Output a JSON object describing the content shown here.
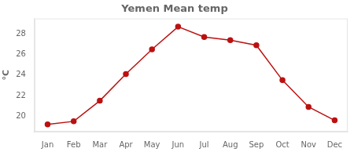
{
  "chart_data": {
    "type": "line",
    "title": "Yemen Mean temp",
    "categories": [
      "Jan",
      "Feb",
      "Mar",
      "Apr",
      "May",
      "Jun",
      "Jul",
      "Aug",
      "Sep",
      "Oct",
      "Nov",
      "Dec"
    ],
    "values": [
      19.2,
      19.5,
      21.5,
      24.1,
      26.5,
      28.7,
      27.7,
      27.4,
      26.9,
      23.5,
      20.9,
      19.6
    ],
    "color": "#bb1111",
    "marker": "circle",
    "ylim": [
      18.5,
      29.5
    ],
    "yticks": [
      20,
      22,
      24,
      26,
      28
    ],
    "ylabel": "°C",
    "grid": false
  }
}
